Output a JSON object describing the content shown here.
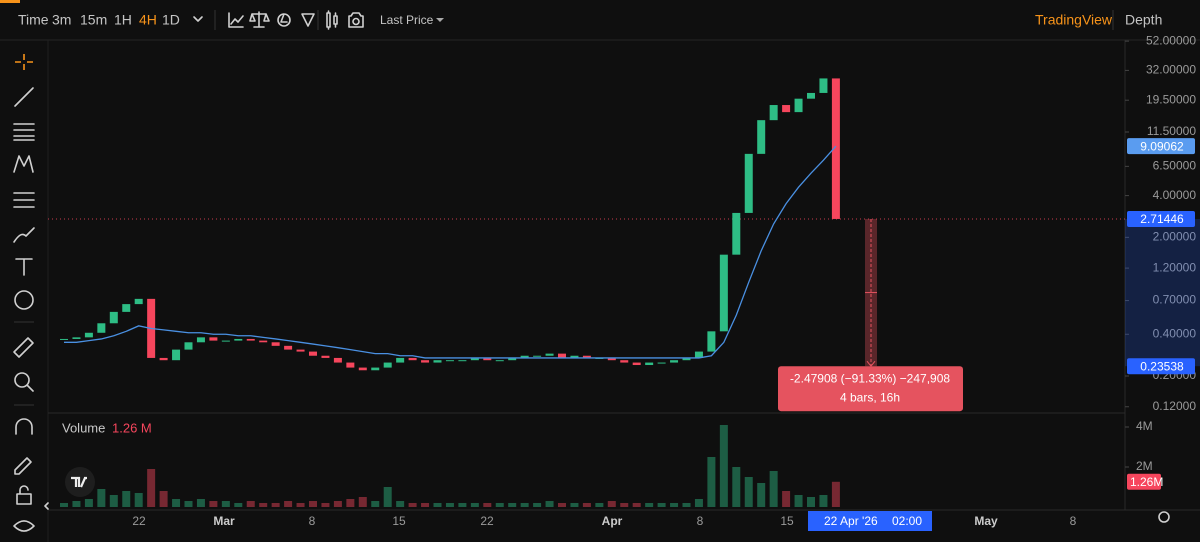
{
  "toolbar": {
    "intervals": [
      "Time",
      "3m",
      "15m",
      "1H",
      "4H",
      "1D"
    ],
    "active_interval": 4,
    "price_type": "Last Price",
    "brand": "TradingView",
    "depth": "Depth"
  },
  "chart_data": {
    "type": "candlestick",
    "log_scale": true,
    "up_color": "#2ebd85",
    "down_color": "#f6465d",
    "ylim": [
      0.11,
      53
    ],
    "yticks": [
      {
        "value": 52,
        "label": "52.00000"
      },
      {
        "value": 32,
        "label": "32.00000"
      },
      {
        "value": 19.5,
        "label": "19.50000"
      },
      {
        "value": 11.5,
        "label": "11.50000"
      },
      {
        "value": 6.5,
        "label": "6.50000"
      },
      {
        "value": 4,
        "label": "4.00000"
      },
      {
        "value": 2,
        "label": "2.00000"
      },
      {
        "value": 1.2,
        "label": "1.20000"
      },
      {
        "value": 0.7,
        "label": "0.70000"
      },
      {
        "value": 0.4,
        "label": "0.40000"
      },
      {
        "value": 0.2,
        "label": "0.20000"
      },
      {
        "value": 0.12,
        "label": "0.12000"
      }
    ],
    "x_labels": [
      "22",
      "Mar",
      "8",
      "15",
      "22",
      "Apr",
      "8",
      "15",
      "May",
      "8"
    ],
    "crosshair_date": "22 Apr '26",
    "crosshair_time": "02:00",
    "closes": [
      0.37,
      0.38,
      0.41,
      0.48,
      0.58,
      0.66,
      0.72,
      0.27,
      0.26,
      0.31,
      0.35,
      0.38,
      0.36,
      0.36,
      0.37,
      0.36,
      0.35,
      0.33,
      0.31,
      0.3,
      0.28,
      0.27,
      0.25,
      0.23,
      0.22,
      0.23,
      0.25,
      0.27,
      0.26,
      0.25,
      0.26,
      0.26,
      0.26,
      0.27,
      0.26,
      0.26,
      0.27,
      0.28,
      0.28,
      0.29,
      0.27,
      0.28,
      0.27,
      0.27,
      0.26,
      0.25,
      0.24,
      0.25,
      0.25,
      0.26,
      0.27,
      0.3,
      0.42,
      1.5,
      3.0,
      8.0,
      14,
      18,
      16,
      20,
      22,
      28,
      2.71446
    ],
    "ma": {
      "color": "#4a90e2",
      "values": [
        0.35,
        0.35,
        0.36,
        0.37,
        0.39,
        0.42,
        0.46,
        0.44,
        0.43,
        0.42,
        0.41,
        0.41,
        0.4,
        0.4,
        0.39,
        0.39,
        0.38,
        0.37,
        0.36,
        0.35,
        0.34,
        0.33,
        0.32,
        0.31,
        0.3,
        0.29,
        0.29,
        0.28,
        0.28,
        0.27,
        0.27,
        0.27,
        0.27,
        0.27,
        0.27,
        0.27,
        0.27,
        0.27,
        0.27,
        0.27,
        0.27,
        0.27,
        0.27,
        0.27,
        0.27,
        0.27,
        0.27,
        0.27,
        0.27,
        0.27,
        0.27,
        0.27,
        0.28,
        0.35,
        0.55,
        0.95,
        1.6,
        2.5,
        3.5,
        4.6,
        5.8,
        7.2,
        9.09062
      ]
    },
    "last_price_line_color": "#f6465d",
    "price_tags": [
      {
        "value": 9.09062,
        "color": "#5a9cf0"
      },
      {
        "value": 2.71446,
        "color": "#2962ff"
      },
      {
        "value": 0.23538,
        "color": "#2962ff"
      }
    ],
    "measure": {
      "line1": "-2.47908 (−91.33%) −247,908",
      "line2": "4 bars, 16h",
      "color": "#e5535f"
    },
    "volume": {
      "title": "Volume",
      "legend_value": "1.26 M",
      "ylim": [
        0,
        4.45
      ],
      "yticks": [
        {
          "value": 4,
          "label": "4M"
        },
        {
          "value": 2,
          "label": "2M"
        }
      ],
      "last_tag": {
        "value": 1.26,
        "label": "1.26M"
      },
      "values": [
        0.2,
        0.3,
        0.4,
        0.9,
        0.6,
        0.8,
        0.7,
        1.9,
        0.8,
        0.4,
        0.3,
        0.4,
        0.3,
        0.3,
        0.2,
        0.3,
        0.2,
        0.2,
        0.3,
        0.2,
        0.3,
        0.2,
        0.3,
        0.4,
        0.5,
        0.3,
        1.0,
        0.3,
        0.2,
        0.2,
        0.2,
        0.2,
        0.2,
        0.2,
        0.2,
        0.2,
        0.2,
        0.2,
        0.2,
        0.3,
        0.2,
        0.2,
        0.2,
        0.2,
        0.3,
        0.2,
        0.2,
        0.2,
        0.2,
        0.2,
        0.2,
        0.4,
        2.5,
        4.1,
        2.0,
        1.5,
        1.2,
        1.8,
        0.8,
        0.6,
        0.5,
        0.6,
        1.26
      ]
    }
  }
}
